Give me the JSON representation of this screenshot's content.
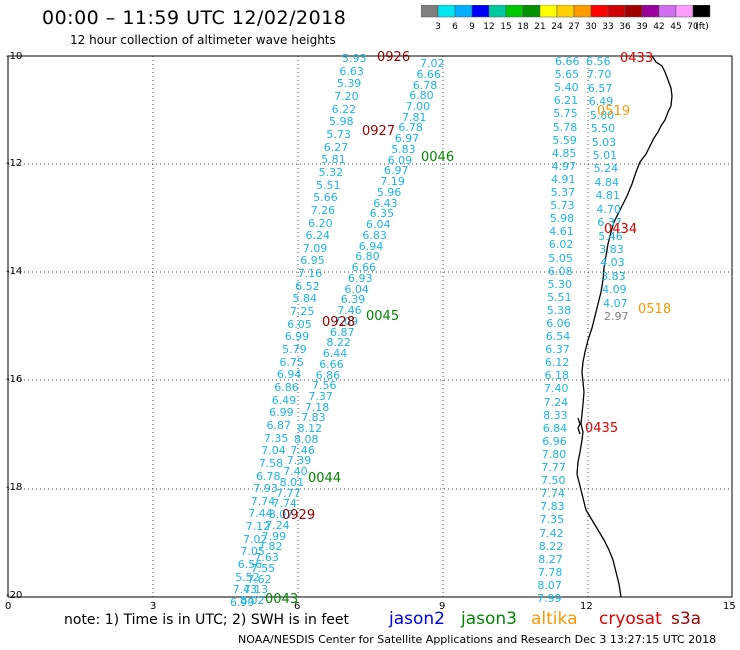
{
  "header": {
    "title": "00:00 – 11:59 UTC 12/02/2018",
    "subtitle": "12 hour collection of altimeter wave heights"
  },
  "color_scale": {
    "colors": [
      "#7f7f7f",
      "#00e5ee",
      "#00b0ff",
      "#0000ff",
      "#00c8a0",
      "#00c800",
      "#009000",
      "#ffff00",
      "#ffd000",
      "#ff9a00",
      "#ff0000",
      "#d00000",
      "#a00000",
      "#9a009a",
      "#cf6ff0",
      "#ff9cff",
      "#000000"
    ],
    "labels": [
      "3",
      "6",
      "9",
      "12",
      "15",
      "18",
      "21",
      "24",
      "27",
      "30",
      "33",
      "36",
      "39",
      "42",
      "45",
      "70",
      "(ft)"
    ]
  },
  "axes": {
    "lat_labels": [
      "-10",
      "-12",
      "-14",
      "-16",
      "-18",
      "-20"
    ],
    "lon_labels": [
      "0",
      "3",
      "6",
      "9",
      "12",
      "15"
    ]
  },
  "footer": {
    "note": "note:  1) Time is in UTC;  2) SWH is in feet",
    "credit": "NOAA/NESDIS Center for Satellite Applications and Research     Dec  3 13:27:15 UTC 2018"
  },
  "legend": [
    {
      "name": "jason2",
      "color": "#0000ee"
    },
    {
      "name": "jason3",
      "color": "#008800"
    },
    {
      "name": "altika",
      "color": "#ff9900"
    },
    {
      "name": "cryosat",
      "color": "#e00000"
    },
    {
      "name": "s3a",
      "color": "#9a0000"
    }
  ],
  "tracks": {
    "track_a": [
      "5.93",
      "6.63",
      "5.39",
      "7.20",
      "6.22",
      "5.98",
      "5.73",
      "6.27",
      "5.81",
      "5.32",
      "5.51",
      "5.66",
      "7.26",
      "6.20",
      "6.24",
      "7.09",
      "6.95",
      "7.16",
      "6.52",
      "5.84",
      "7.25",
      "6.05",
      "6.99",
      "5.79",
      "6.75",
      "6.94",
      "6.86",
      "6.49",
      "6.99",
      "6.87",
      "7.35",
      "7.04",
      "7.58",
      "6.78",
      "7.93",
      "7.74",
      "7.44",
      "7.12",
      "7.02",
      "7.05",
      "6.56",
      "5.52",
      "7.43",
      "6.99"
    ],
    "track_b": [
      "7.02",
      "6.66",
      "6.78",
      "6.80",
      "7.00",
      "7.81",
      "6.78",
      "6.97",
      "5.83",
      "6.09",
      "6.97",
      "7.19",
      "5.96",
      "6.43",
      "6.35",
      "6.04",
      "6.83",
      "6.94",
      "6.80",
      "6.66",
      "6.93",
      "6.04",
      "6.39",
      "7.46",
      "7.09",
      "6.87",
      "8.22",
      "6.44",
      "6.66",
      "6.86",
      "7.56",
      "7.37",
      "7.18",
      "7.83",
      "8.12",
      "8.08",
      "7.46",
      "7.39",
      "7.40",
      "8.01",
      "7.77",
      "7.74",
      "8.07",
      "7.24",
      "7.99",
      "7.82",
      "7.63",
      "7.55",
      "7.62",
      "7.13",
      "8.02"
    ],
    "track_c": [
      "6.66",
      "5.65",
      "5.40",
      "6.21",
      "5.75",
      "5.78",
      "5.59",
      "4.85",
      "4.97",
      "4.91",
      "5.37",
      "5.73",
      "5.98",
      "4.61",
      "6.02",
      "5.05",
      "6.08",
      "5.30",
      "5.51",
      "5.38",
      "6.06",
      "6.54",
      "6.37",
      "6.12",
      "6.18",
      "7.40",
      "7.24",
      "8.33",
      "6.84",
      "6.96",
      "7.80",
      "7.77",
      "7.50",
      "7.74",
      "7.83",
      "7.35",
      "7.42",
      "8.22",
      "8.27",
      "7.78",
      "8.07",
      "7.99"
    ],
    "track_d": [
      "6.56",
      "7.70",
      "6.57",
      "6.49",
      "5.80",
      "5.50",
      "5.03",
      "5.01",
      "5.24",
      "4.84",
      "4.81",
      "4.70",
      "6.37",
      "5.46",
      "3.83",
      "4.03",
      "3.83",
      "4.09",
      "4.07",
      "2.97"
    ]
  },
  "time_labels": {
    "t0926": "0926",
    "t0927": "0927",
    "t0928": "0928",
    "t0929": "0929",
    "t0045": "0045",
    "t0046": "0046",
    "t0044": "0044",
    "t0043": "0043",
    "t0433": "0433",
    "t0434": "0434",
    "t0435": "0435",
    "t0519": "0519",
    "t0518": "0518"
  }
}
